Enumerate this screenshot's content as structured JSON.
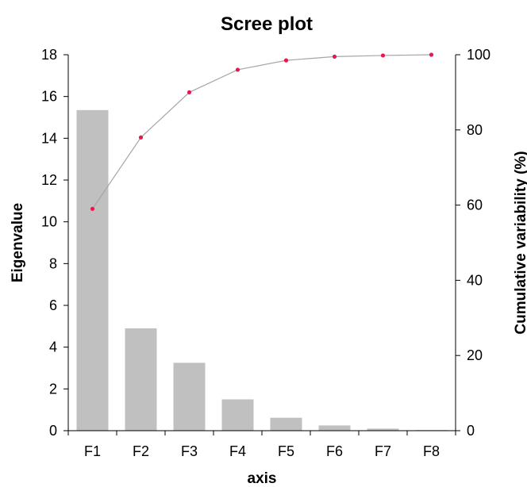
{
  "chart_data": {
    "type": "bar",
    "title": "Scree plot",
    "xlabel": "axis",
    "ylabel": "Eigenvalue",
    "y2label": "Cumulative variability (%)",
    "categories": [
      "F1",
      "F2",
      "F3",
      "F4",
      "F5",
      "F6",
      "F7",
      "F8"
    ],
    "series": [
      {
        "name": "Eigenvalue",
        "type": "bar",
        "axis": "left",
        "color": "#c0c0c0",
        "values": [
          15.35,
          4.9,
          3.25,
          1.5,
          0.62,
          0.25,
          0.1,
          0.03
        ]
      },
      {
        "name": "Cumulative variability (%)",
        "type": "line",
        "axis": "right",
        "line_color": "#a6a6a6",
        "marker_color": "#e8174f",
        "values": [
          59,
          78,
          90,
          96,
          98.5,
          99.5,
          99.8,
          100
        ]
      }
    ],
    "ylim": [
      0,
      18
    ],
    "y_ticks": [
      0,
      2,
      4,
      6,
      8,
      10,
      12,
      14,
      16,
      18
    ],
    "y2lim": [
      0,
      100
    ],
    "y2_ticks": [
      0,
      20,
      40,
      60,
      80,
      100
    ],
    "grid": false,
    "legend": "none"
  }
}
